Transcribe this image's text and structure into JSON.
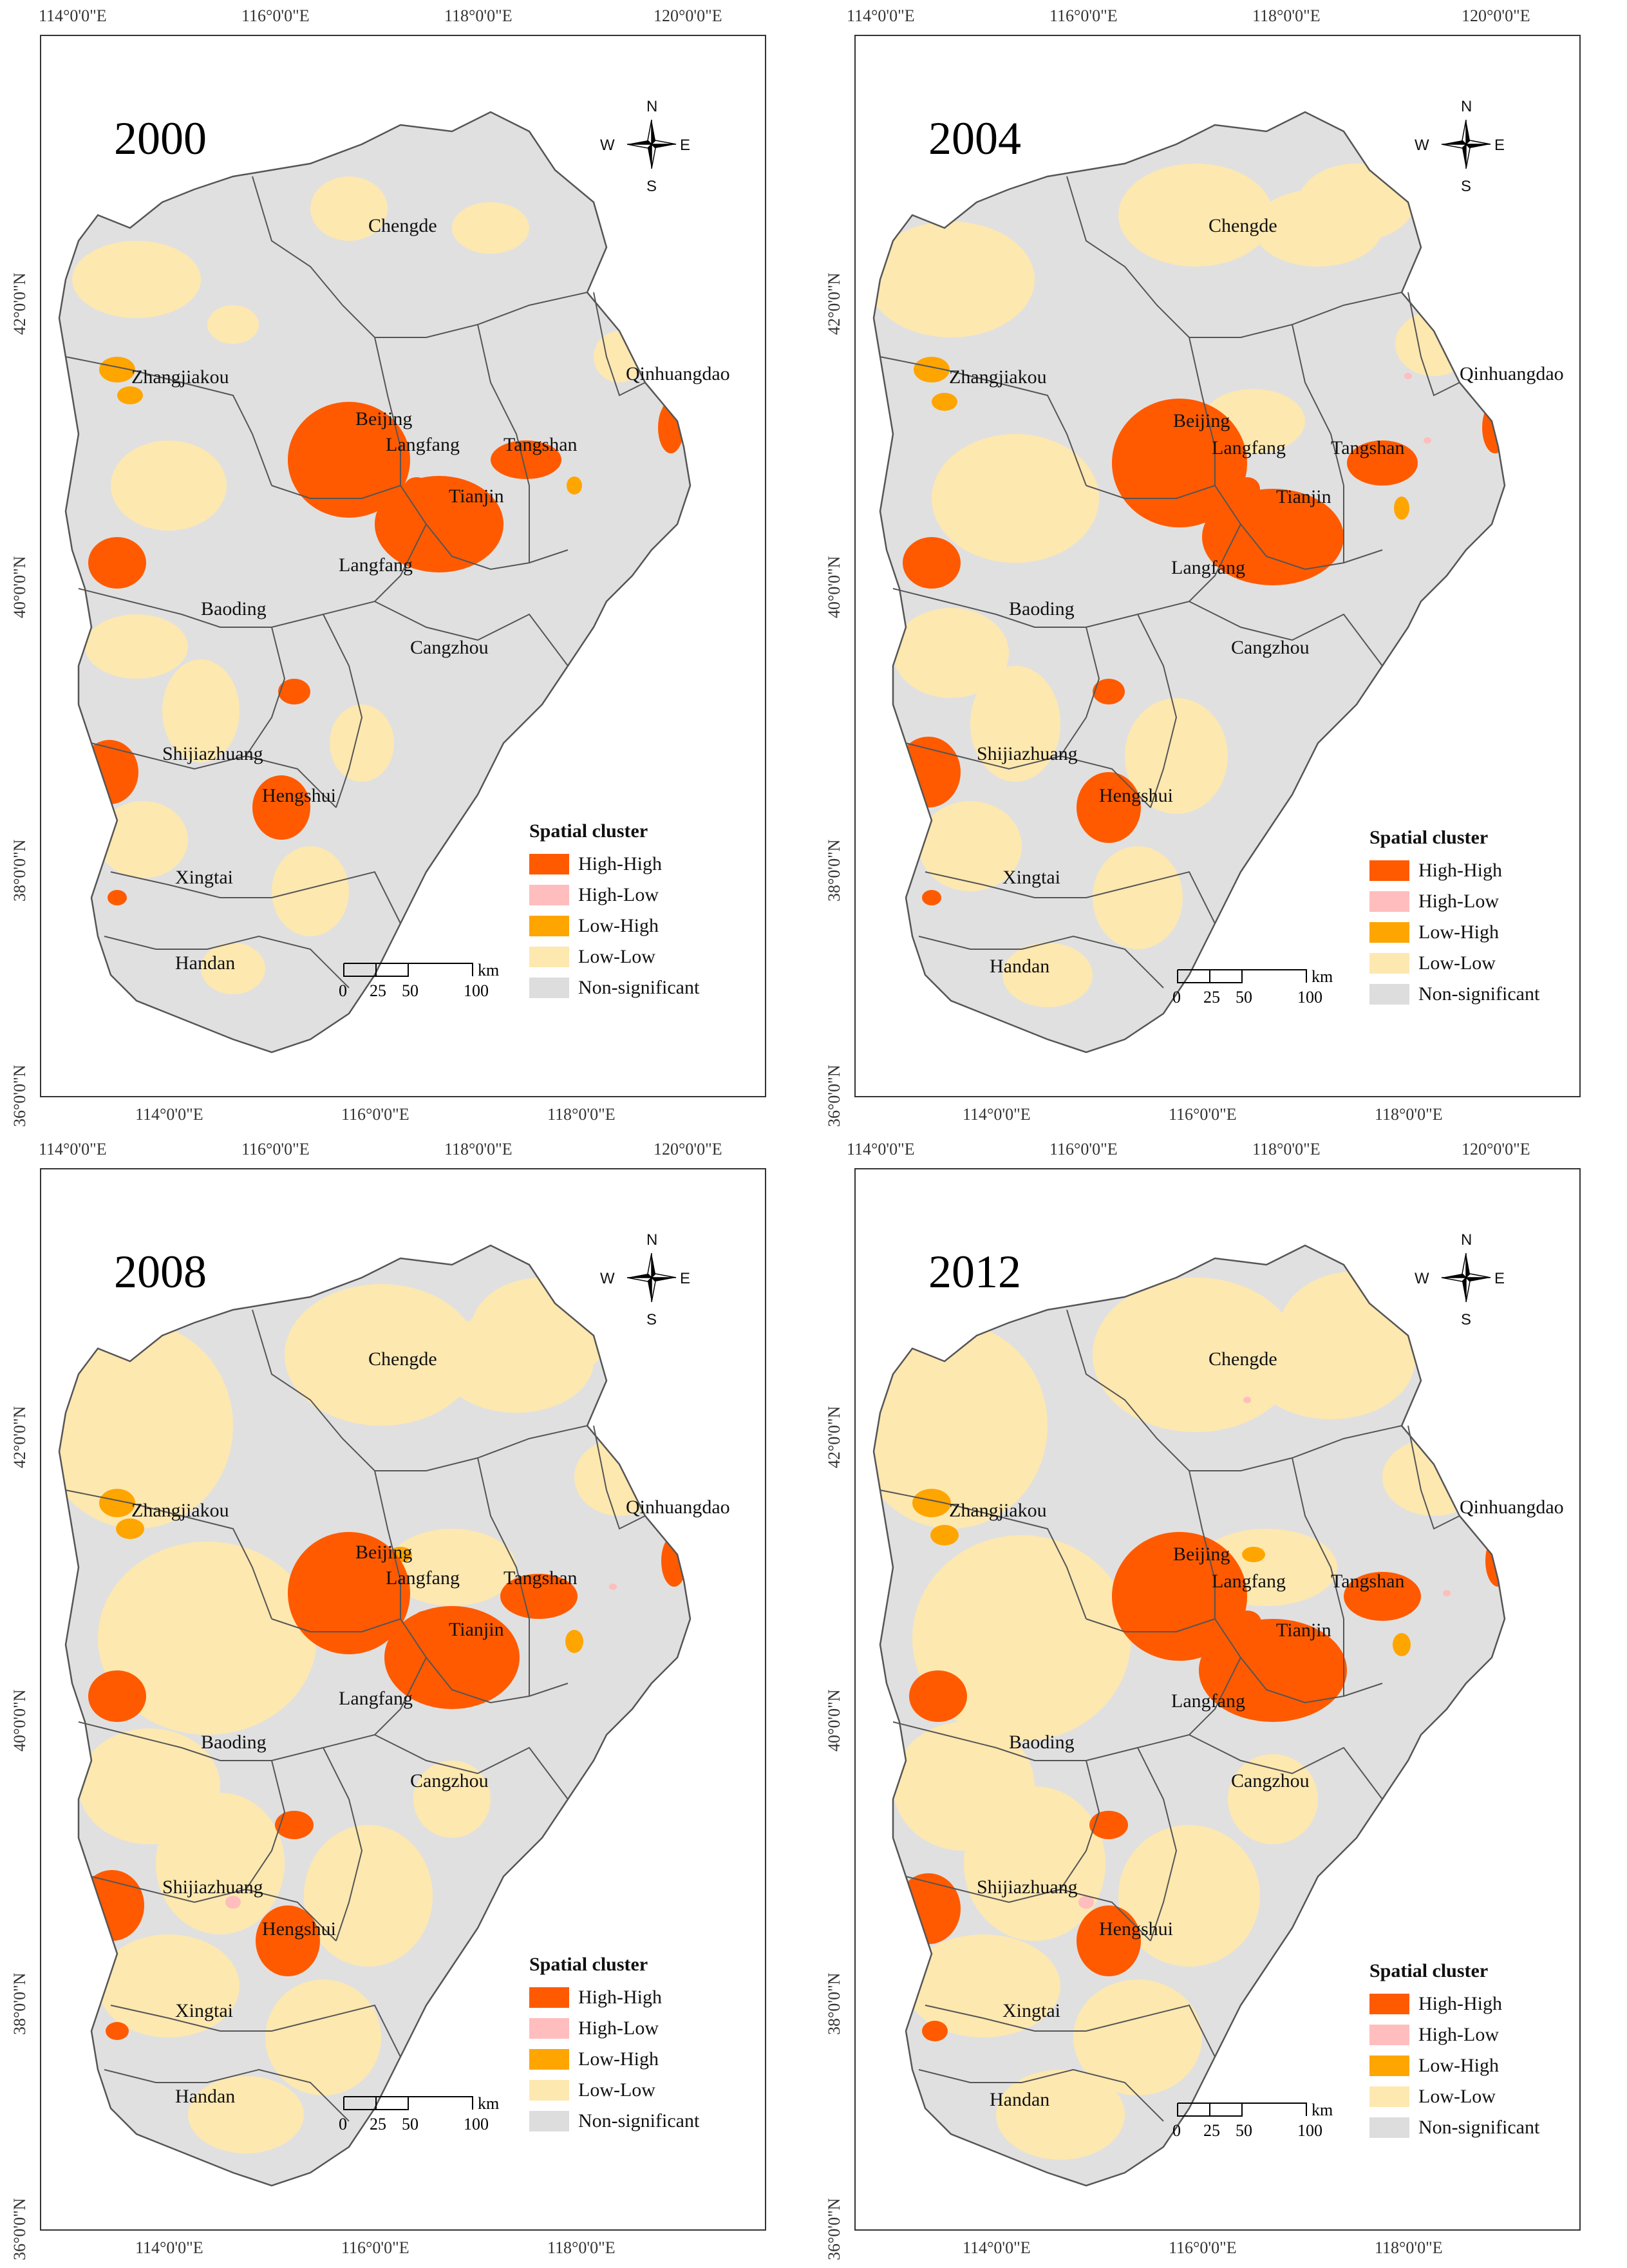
{
  "panels": [
    {
      "year": "2000"
    },
    {
      "year": "2004"
    },
    {
      "year": "2008"
    },
    {
      "year": "2012"
    }
  ],
  "axes": {
    "top_ticks": [
      "114°0'0\"E",
      "116°0'0\"E",
      "118°0'0\"E",
      "120°0'0\"E"
    ],
    "bottom_ticks": [
      "114°0'0\"E",
      "116°0'0\"E",
      "118°0'0\"E"
    ],
    "right_ticks": [
      "42°0'0\"N",
      "40°0'0\"N",
      "38°0'0\"N",
      "36°0'0\"N"
    ],
    "left_ticks": [
      "42°0'0\"N",
      "40°0'0\"N",
      "38°0'0\"N",
      "36°0'0\"N"
    ]
  },
  "cities": [
    "Chengde",
    "Zhangjiakou",
    "Qinhuangdao",
    "Beijing",
    "Langfang",
    "Tangshan",
    "Tianjin",
    "Langfang",
    "Baoding",
    "Cangzhou",
    "Shijiazhuang",
    "Hengshui",
    "Xingtai",
    "Handan"
  ],
  "compass": {
    "n": "N",
    "s": "S",
    "e": "E",
    "w": "W"
  },
  "scale": {
    "unit": "km",
    "labels": [
      "0",
      "25",
      "50",
      "100"
    ]
  },
  "legend": {
    "title": "Spatial cluster",
    "items": [
      {
        "label": "High-High",
        "color": "#ff5a00"
      },
      {
        "label": "High-Low",
        "color": "#ffbdbd"
      },
      {
        "label": "Low-High",
        "color": "#ffa500"
      },
      {
        "label": "Low-Low",
        "color": "#fde8b0"
      },
      {
        "label": "Non-significant",
        "color": "#dddddd"
      }
    ]
  },
  "colors": {
    "background_region": "#e0e0e0",
    "low_low": "#fde8b0",
    "high_high": "#ff5a00",
    "low_high": "#ffa500",
    "high_low": "#ffbdbd",
    "border": "#555555"
  }
}
